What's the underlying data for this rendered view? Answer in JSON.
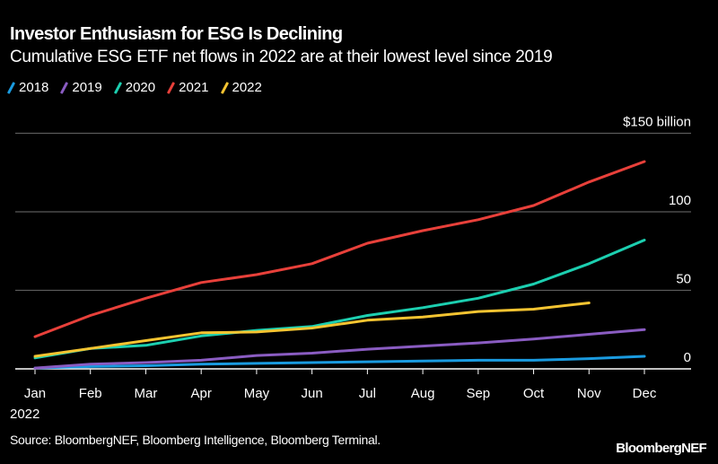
{
  "header": {
    "title": "Investor Enthusiasm for ESG Is Declining",
    "subtitle": "Cumulative ESG ETF net flows in 2022 are at their lowest level since 2019"
  },
  "footer": {
    "source": "Source: BloombergNEF, Bloomberg Intelligence, Bloomberg Terminal.",
    "logo": "BloombergNEF"
  },
  "chart_data": {
    "type": "line",
    "title": "Investor Enthusiasm for ESG Is Declining",
    "subtitle": "Cumulative ESG ETF net flows in 2022 are at their lowest level since 2019",
    "xlabel": "",
    "ylabel": "",
    "x": [
      "Jan",
      "Feb",
      "Mar",
      "Apr",
      "May",
      "Jun",
      "Jul",
      "Aug",
      "Sep",
      "Oct",
      "Nov",
      "Dec"
    ],
    "x_sublabel": "2022",
    "ylim": [
      0,
      150
    ],
    "yticks": [
      {
        "value": 0,
        "label": "0"
      },
      {
        "value": 50,
        "label": "50"
      },
      {
        "value": 100,
        "label": "100"
      },
      {
        "value": 150,
        "label": "$150 billion"
      }
    ],
    "grid": true,
    "legend_position": "top-left",
    "series": [
      {
        "name": "2018",
        "color": "#1a9be0",
        "values": [
          0.5,
          1.5,
          2,
          3,
          3.5,
          4,
          4.5,
          5,
          5.5,
          5.5,
          6.5,
          8
        ]
      },
      {
        "name": "2019",
        "color": "#8a5cc2",
        "values": [
          0.5,
          3,
          4,
          5.5,
          8.5,
          10,
          12.5,
          14.5,
          16.5,
          19,
          22,
          25
        ]
      },
      {
        "name": "2020",
        "color": "#1ccfb0",
        "values": [
          7,
          13,
          15,
          21,
          24.5,
          27,
          34,
          39,
          45,
          54,
          67,
          82
        ]
      },
      {
        "name": "2021",
        "color": "#e8403a",
        "values": [
          20.5,
          34,
          45,
          55,
          60,
          67,
          80,
          88,
          95,
          104,
          119,
          132
        ]
      },
      {
        "name": "2022",
        "color": "#f5c431",
        "values": [
          8,
          13,
          18,
          23,
          23.5,
          26,
          31,
          33,
          36.5,
          38,
          42,
          null
        ]
      }
    ]
  }
}
